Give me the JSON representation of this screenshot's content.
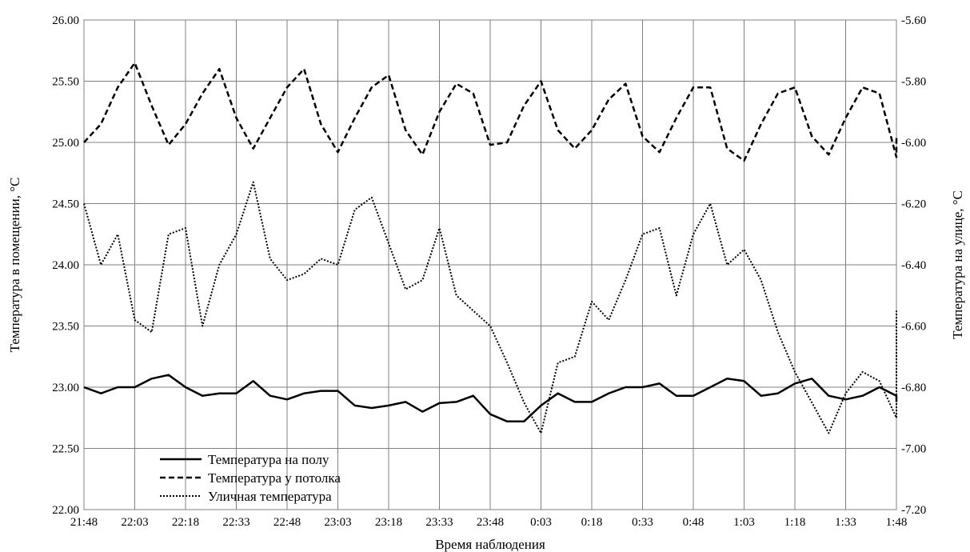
{
  "chart_data": {
    "type": "line",
    "title": "",
    "xlabel": "Время наблюдения",
    "ylabel_left": "Температура в помещении, °С",
    "ylabel_right": "Температура на улице, °С",
    "ylim_left": [
      22.0,
      26.0
    ],
    "ylim_right": [
      -7.2,
      -5.6
    ],
    "yticks_left": [
      "22.00",
      "22.50",
      "23.00",
      "23.50",
      "24.00",
      "24.50",
      "25.00",
      "25.50",
      "26.00"
    ],
    "yticks_right": [
      "-7.20",
      "-7.00",
      "-6.80",
      "-6.60",
      "-6.40",
      "-6.20",
      "-6.00",
      "-5.80",
      "-5.60"
    ],
    "xticks": [
      "21:48",
      "22:03",
      "22:18",
      "22:33",
      "22:48",
      "23:03",
      "23:18",
      "23:33",
      "23:48",
      "0:03",
      "0:18",
      "0:33",
      "0:48",
      "1:03",
      "1:18",
      "1:33",
      "1:48"
    ],
    "x_minutes_per_tick": 15,
    "grid": true,
    "legend_position": "bottom-left",
    "series": [
      {
        "name": "Температура на полу",
        "axis": "left",
        "line_style": "solid",
        "x": [
          "21:48",
          "21:53",
          "21:58",
          "22:03",
          "22:08",
          "22:13",
          "22:18",
          "22:23",
          "22:28",
          "22:33",
          "22:38",
          "22:43",
          "22:48",
          "22:53",
          "22:58",
          "23:03",
          "23:08",
          "23:13",
          "23:18",
          "23:23",
          "23:28",
          "23:33",
          "23:38",
          "23:43",
          "23:48",
          "23:53",
          "23:58",
          "0:03",
          "0:08",
          "0:13",
          "0:18",
          "0:23",
          "0:28",
          "0:33",
          "0:38",
          "0:43",
          "0:48",
          "0:53",
          "0:58",
          "1:03",
          "1:08",
          "1:13",
          "1:18",
          "1:23",
          "1:28",
          "1:33",
          "1:38",
          "1:43",
          "1:48",
          "1:53"
        ],
        "values": [
          23.0,
          22.95,
          23.0,
          23.0,
          23.07,
          23.1,
          23.0,
          22.93,
          22.95,
          22.95,
          23.05,
          22.93,
          22.9,
          22.95,
          22.97,
          22.97,
          22.85,
          22.83,
          22.85,
          22.88,
          22.8,
          22.87,
          22.88,
          22.93,
          22.78,
          22.72,
          22.72,
          22.85,
          22.95,
          22.88,
          22.88,
          22.95,
          23.0,
          23.0,
          23.03,
          22.93,
          22.93,
          23.0,
          23.07,
          23.05,
          22.93,
          22.95,
          23.03,
          23.07,
          22.93,
          22.9,
          22.93,
          23.0,
          22.93,
          22.88
        ]
      },
      {
        "name": "Температура у потолка",
        "axis": "left",
        "line_style": "dashed",
        "x": [
          "21:48",
          "21:53",
          "21:58",
          "22:03",
          "22:08",
          "22:13",
          "22:18",
          "22:23",
          "22:28",
          "22:33",
          "22:38",
          "22:43",
          "22:48",
          "22:53",
          "22:58",
          "23:03",
          "23:08",
          "23:13",
          "23:18",
          "23:23",
          "23:28",
          "23:33",
          "23:38",
          "23:43",
          "23:48",
          "23:53",
          "23:58",
          "0:03",
          "0:08",
          "0:13",
          "0:18",
          "0:23",
          "0:28",
          "0:33",
          "0:38",
          "0:43",
          "0:48",
          "0:53",
          "0:58",
          "1:03",
          "1:08",
          "1:13",
          "1:18",
          "1:23",
          "1:28",
          "1:33",
          "1:38",
          "1:43",
          "1:48",
          "1:53"
        ],
        "values": [
          25.0,
          25.15,
          25.45,
          25.65,
          25.3,
          24.98,
          25.15,
          25.4,
          25.6,
          25.2,
          24.95,
          25.2,
          25.45,
          25.6,
          25.15,
          24.92,
          25.2,
          25.45,
          25.55,
          25.1,
          24.9,
          25.25,
          25.48,
          25.4,
          24.98,
          25.0,
          25.3,
          25.5,
          25.1,
          24.95,
          25.1,
          25.35,
          25.48,
          25.05,
          24.92,
          25.2,
          25.45,
          25.45,
          24.95,
          24.85,
          25.15,
          25.4,
          25.45,
          25.05,
          24.9,
          25.2,
          25.45,
          25.4,
          24.88,
          25.05
        ]
      },
      {
        "name": "Уличная температура",
        "axis": "right",
        "line_style": "dotted",
        "x": [
          "21:48",
          "21:53",
          "21:58",
          "22:03",
          "22:08",
          "22:13",
          "22:18",
          "22:23",
          "22:28",
          "22:33",
          "22:38",
          "22:43",
          "22:48",
          "22:53",
          "22:58",
          "23:03",
          "23:08",
          "23:13",
          "23:18",
          "23:23",
          "23:28",
          "23:33",
          "23:38",
          "23:43",
          "23:48",
          "23:53",
          "23:58",
          "0:03",
          "0:08",
          "0:13",
          "0:18",
          "0:23",
          "0:28",
          "0:33",
          "0:38",
          "0:43",
          "0:48",
          "0:53",
          "0:58",
          "1:03",
          "1:08",
          "1:13",
          "1:18",
          "1:23",
          "1:28",
          "1:33",
          "1:38",
          "1:43",
          "1:48",
          "1:53"
        ],
        "values": [
          -6.2,
          -6.4,
          -6.3,
          -6.58,
          -6.62,
          -6.3,
          -6.28,
          -6.6,
          -6.4,
          -6.3,
          -6.13,
          -6.38,
          -6.45,
          -6.43,
          -6.38,
          -6.4,
          -6.22,
          -6.18,
          -6.33,
          -6.48,
          -6.45,
          -6.28,
          -6.5,
          -6.55,
          -6.6,
          -6.72,
          -6.85,
          -6.95,
          -6.72,
          -6.7,
          -6.52,
          -6.58,
          -6.45,
          -6.3,
          -6.28,
          -6.5,
          -6.3,
          -6.2,
          -6.4,
          -6.35,
          -6.45,
          -6.62,
          -6.75,
          -6.85,
          -6.95,
          -6.82,
          -6.75,
          -6.78,
          -6.9,
          -6.55
        ]
      }
    ]
  }
}
